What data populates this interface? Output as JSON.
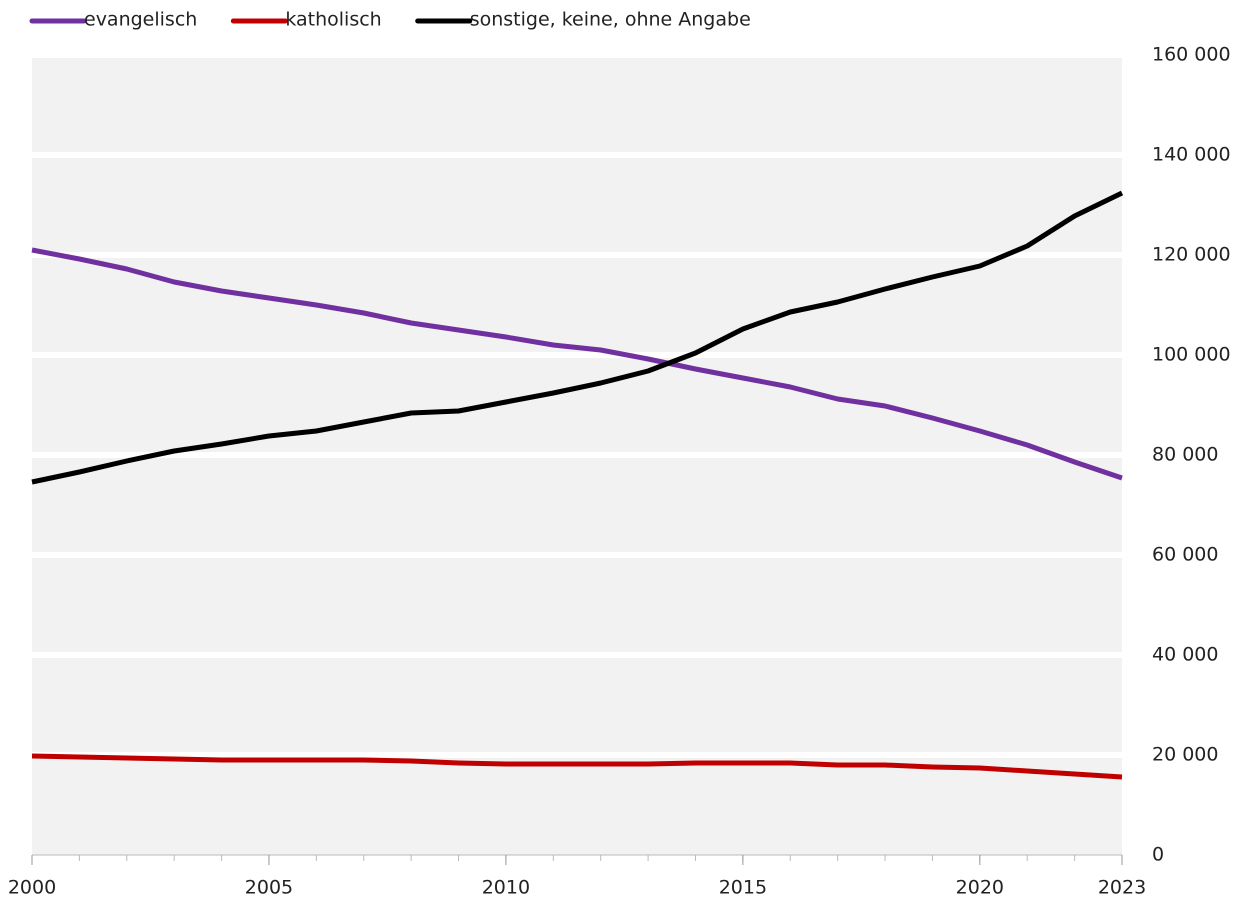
{
  "chart_data": {
    "type": "line",
    "x": [
      2000,
      2001,
      2002,
      2003,
      2004,
      2005,
      2006,
      2007,
      2008,
      2009,
      2010,
      2011,
      2012,
      2013,
      2014,
      2015,
      2016,
      2017,
      2018,
      2019,
      2020,
      2021,
      2022,
      2023
    ],
    "series": [
      {
        "name": "evangelisch",
        "color": "#7030a0",
        "values": [
          121000,
          119200,
          117200,
          114600,
          112800,
          111400,
          110000,
          108400,
          106400,
          105000,
          103600,
          102000,
          101000,
          99200,
          97200,
          95400,
          93600,
          91200,
          89800,
          87400,
          84800,
          82000,
          78600,
          75400
        ]
      },
      {
        "name": "katholisch",
        "color": "#c00000",
        "values": [
          19800,
          19600,
          19400,
          19200,
          19000,
          19000,
          19000,
          19000,
          18800,
          18400,
          18200,
          18200,
          18200,
          18200,
          18400,
          18400,
          18400,
          18000,
          18000,
          17600,
          17400,
          16800,
          16200,
          15600
        ]
      },
      {
        "name": "sonstige, keine, ohne Angabe",
        "color": "#000000",
        "values": [
          74600,
          76600,
          78800,
          80800,
          82200,
          83800,
          84800,
          86600,
          88400,
          88800,
          90600,
          92400,
          94400,
          96800,
          100400,
          105200,
          108600,
          110600,
          113200,
          115600,
          117800,
          121800,
          127800,
          132400
        ]
      }
    ],
    "xlim": [
      2000,
      2023
    ],
    "xticks": [
      2000,
      2005,
      2010,
      2015,
      2020,
      2023
    ],
    "ylim": [
      0,
      160000
    ],
    "yticks": [
      0,
      {
        "value": 20000,
        "label": "20 000"
      },
      {
        "value": 40000,
        "label": "40 000"
      },
      {
        "value": 60000,
        "label": "60 000"
      },
      {
        "value": 80000,
        "label": "80 000"
      },
      {
        "value": 100000,
        "label": "100 000"
      },
      {
        "value": 120000,
        "label": "120 000"
      },
      {
        "value": 140000,
        "label": "140 000"
      },
      {
        "value": 160000,
        "label": "160 000"
      }
    ],
    "grid": true,
    "legend": "top"
  }
}
